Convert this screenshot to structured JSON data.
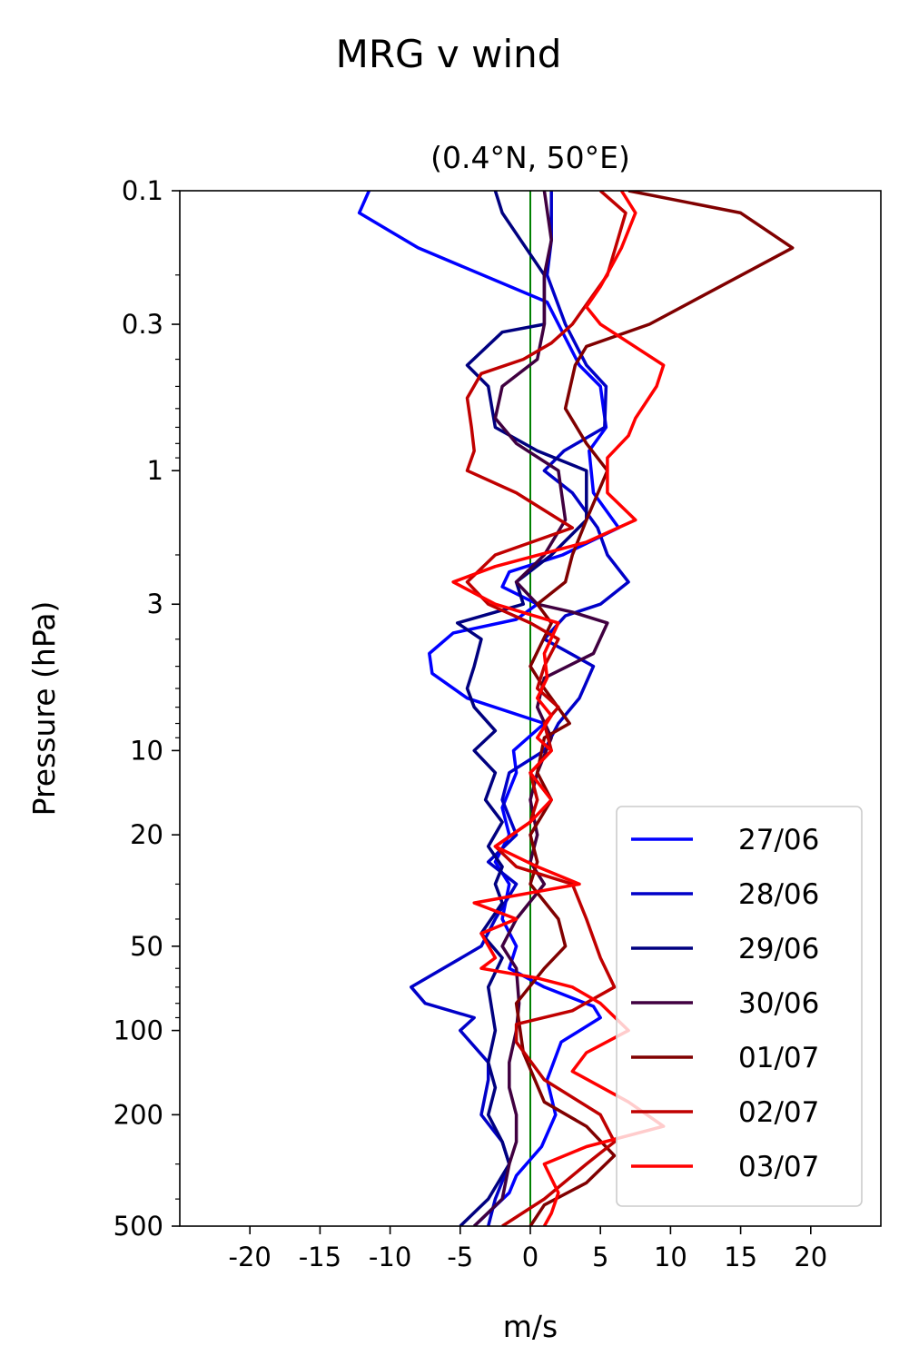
{
  "suptitle": "MRG v wind",
  "chart_data": {
    "type": "line",
    "title": "(0.4°N, 50°E)",
    "xlabel": "m/s",
    "ylabel": "Pressure (hPa)",
    "xlim": [
      -25,
      25
    ],
    "ylim": [
      500,
      0.1
    ],
    "yscale": "log",
    "y_inverted": true,
    "xticks": [
      -20,
      -15,
      -10,
      -5,
      0,
      5,
      10,
      15,
      20
    ],
    "xtick_labels": [
      "-20",
      "-15",
      "-10",
      "-5",
      "0",
      "5",
      "10",
      "15",
      "20"
    ],
    "yticks": [
      0.1,
      0.3,
      1,
      3,
      10,
      20,
      50,
      100,
      200,
      500
    ],
    "ytick_labels": [
      "0.1",
      "0.3",
      "1",
      "3",
      "10",
      "20",
      "50",
      "100",
      "200",
      "500"
    ],
    "grid": false,
    "legend_position": "lower-right",
    "reference_line": {
      "x": 0,
      "color": "#008000"
    },
    "series": [
      {
        "name": "27/06",
        "color": "#0000ff",
        "points": [
          [
            -11.5,
            0.1
          ],
          [
            -12.2,
            0.12
          ],
          [
            -8,
            0.16
          ],
          [
            1.2,
            0.25
          ],
          [
            3.5,
            0.42
          ],
          [
            5.0,
            0.5
          ],
          [
            5.4,
            0.7
          ],
          [
            4.2,
            0.85
          ],
          [
            4.5,
            1.2
          ],
          [
            6.3,
            1.6
          ],
          [
            2.3,
            2.0
          ],
          [
            -1.5,
            2.3
          ],
          [
            -2.0,
            2.6
          ],
          [
            0.5,
            3.0
          ],
          [
            -1.0,
            3.4
          ],
          [
            -5.5,
            3.8
          ],
          [
            -7.2,
            4.5
          ],
          [
            -7.0,
            5.3
          ],
          [
            -4.5,
            6.5
          ],
          [
            1.0,
            8.0
          ],
          [
            -1.2,
            10
          ],
          [
            -1.0,
            12
          ],
          [
            -2.0,
            16
          ],
          [
            -1.5,
            20
          ],
          [
            -2.5,
            25
          ],
          [
            -1.5,
            30
          ],
          [
            -2.0,
            40
          ],
          [
            -1.0,
            50
          ],
          [
            -1.5,
            60
          ],
          [
            1.0,
            70
          ],
          [
            4.5,
            82
          ],
          [
            5.0,
            90
          ],
          [
            2.2,
            110
          ],
          [
            1.2,
            150
          ],
          [
            1.8,
            200
          ],
          [
            0.8,
            260
          ],
          [
            -1.0,
            330
          ],
          [
            -1.5,
            380
          ],
          [
            -4.0,
            500
          ]
        ]
      },
      {
        "name": "28/06",
        "color": "#0000c8",
        "points": [
          [
            1.5,
            0.1
          ],
          [
            1.5,
            0.15
          ],
          [
            1.2,
            0.2
          ],
          [
            2.5,
            0.3
          ],
          [
            4.0,
            0.42
          ],
          [
            5.4,
            0.5
          ],
          [
            5.3,
            0.7
          ],
          [
            2.4,
            0.85
          ],
          [
            1.0,
            1.0
          ],
          [
            3.0,
            1.2
          ],
          [
            4.8,
            1.6
          ],
          [
            5.5,
            2.0
          ],
          [
            7.0,
            2.5
          ],
          [
            5.0,
            3.0
          ],
          [
            2.5,
            3.3
          ],
          [
            1.0,
            4.0
          ],
          [
            4.5,
            5.0
          ],
          [
            3.5,
            6.5
          ],
          [
            2.0,
            8.0
          ],
          [
            1.0,
            10
          ],
          [
            -1.5,
            12
          ],
          [
            -2.0,
            15
          ],
          [
            -1.0,
            20
          ],
          [
            -3.0,
            25
          ],
          [
            -1.0,
            30
          ],
          [
            -2.5,
            40
          ],
          [
            -3.5,
            50
          ],
          [
            -8.5,
            70
          ],
          [
            -7.5,
            80
          ],
          [
            -4.0,
            90
          ],
          [
            -5.0,
            100
          ],
          [
            -3.0,
            130
          ],
          [
            -3.0,
            150
          ],
          [
            -3.5,
            200
          ],
          [
            -2.0,
            250
          ],
          [
            -1.5,
            300
          ],
          [
            -2.5,
            400
          ],
          [
            -3.0,
            500
          ]
        ]
      },
      {
        "name": "29/06",
        "color": "#000080",
        "points": [
          [
            -2.5,
            0.1
          ],
          [
            -2.0,
            0.12
          ],
          [
            1.0,
            0.2
          ],
          [
            1.0,
            0.3
          ],
          [
            -2.0,
            0.32
          ],
          [
            -4.5,
            0.42
          ],
          [
            -3.0,
            0.5
          ],
          [
            -2.5,
            0.7
          ],
          [
            0.5,
            0.85
          ],
          [
            4.0,
            1.0
          ],
          [
            4.0,
            1.5
          ],
          [
            1.5,
            2.0
          ],
          [
            -1.0,
            2.5
          ],
          [
            -0.5,
            3.0
          ],
          [
            -5.2,
            3.5
          ],
          [
            -3.5,
            4.0
          ],
          [
            -4.0,
            5.0
          ],
          [
            -4.5,
            6.0
          ],
          [
            -4.0,
            7.0
          ],
          [
            -2.5,
            8.5
          ],
          [
            -4.0,
            10
          ],
          [
            -2.5,
            12
          ],
          [
            -3.2,
            15
          ],
          [
            -2.0,
            18
          ],
          [
            -3.0,
            22
          ],
          [
            -2.0,
            26
          ],
          [
            -2.5,
            30
          ],
          [
            -2.0,
            35
          ],
          [
            -3.5,
            45
          ],
          [
            -2.0,
            55
          ],
          [
            -3.0,
            70
          ],
          [
            -2.5,
            100
          ],
          [
            -3.0,
            130
          ],
          [
            -2.5,
            160
          ],
          [
            -3.0,
            200
          ],
          [
            -2.0,
            250
          ],
          [
            -1.5,
            300
          ],
          [
            -3.0,
            400
          ],
          [
            -5.0,
            500
          ]
        ]
      },
      {
        "name": "30/06",
        "color": "#400040",
        "points": [
          [
            1.0,
            0.1
          ],
          [
            1.5,
            0.15
          ],
          [
            1.0,
            0.2
          ],
          [
            1.0,
            0.3
          ],
          [
            0.5,
            0.4
          ],
          [
            -2.0,
            0.5
          ],
          [
            -2.5,
            0.65
          ],
          [
            -1.0,
            0.8
          ],
          [
            2.0,
            1.0
          ],
          [
            2.5,
            1.5
          ],
          [
            1.0,
            2.0
          ],
          [
            -1.0,
            2.5
          ],
          [
            0.5,
            3.0
          ],
          [
            3.0,
            3.2
          ],
          [
            5.5,
            3.5
          ],
          [
            4.5,
            4.5
          ],
          [
            1.0,
            5.5
          ],
          [
            0.5,
            7.0
          ],
          [
            1.5,
            9.0
          ],
          [
            0.5,
            12
          ],
          [
            0.0,
            15
          ],
          [
            0.5,
            20
          ],
          [
            0.0,
            25
          ],
          [
            1.0,
            30
          ],
          [
            -1.0,
            40
          ],
          [
            -2.0,
            50
          ],
          [
            -1.0,
            60
          ],
          [
            -0.8,
            80
          ],
          [
            -1.0,
            100
          ],
          [
            -1.5,
            130
          ],
          [
            -1.5,
            160
          ],
          [
            -1.0,
            200
          ],
          [
            -1.0,
            250
          ],
          [
            -1.5,
            300
          ],
          [
            -2.0,
            400
          ],
          [
            -4.0,
            500
          ]
        ]
      },
      {
        "name": "01/07",
        "color": "#800000",
        "points": [
          [
            7.0,
            0.1
          ],
          [
            15.0,
            0.12
          ],
          [
            18.7,
            0.16
          ],
          [
            8.5,
            0.3
          ],
          [
            4.0,
            0.36
          ],
          [
            3.2,
            0.42
          ],
          [
            2.5,
            0.6
          ],
          [
            4.0,
            0.8
          ],
          [
            5.5,
            1.0
          ],
          [
            4.0,
            1.5
          ],
          [
            3.0,
            2.0
          ],
          [
            2.5,
            2.5
          ],
          [
            0.5,
            3.0
          ],
          [
            1.5,
            3.5
          ],
          [
            0.0,
            5.0
          ],
          [
            1.0,
            6.0
          ],
          [
            2.8,
            8.0
          ],
          [
            1.0,
            9.0
          ],
          [
            0.5,
            12
          ],
          [
            1.5,
            15
          ],
          [
            0.0,
            20
          ],
          [
            0.5,
            25
          ],
          [
            0.0,
            30
          ],
          [
            2.0,
            40
          ],
          [
            2.5,
            50
          ],
          [
            1.0,
            60
          ],
          [
            -1.0,
            80
          ],
          [
            -0.5,
            120
          ],
          [
            1.0,
            180
          ],
          [
            4.0,
            220
          ],
          [
            6.0,
            280
          ],
          [
            4.0,
            350
          ],
          [
            1.0,
            420
          ],
          [
            0.0,
            500
          ]
        ]
      },
      {
        "name": "02/07",
        "color": "#c00000",
        "points": [
          [
            5.0,
            0.1
          ],
          [
            6.8,
            0.12
          ],
          [
            5.5,
            0.2
          ],
          [
            3.0,
            0.3
          ],
          [
            1.5,
            0.35
          ],
          [
            -0.5,
            0.4
          ],
          [
            -3.5,
            0.45
          ],
          [
            -4.5,
            0.55
          ],
          [
            -4.2,
            0.7
          ],
          [
            -4.0,
            0.85
          ],
          [
            -4.5,
            1.0
          ],
          [
            -1.0,
            1.2
          ],
          [
            3.0,
            1.6
          ],
          [
            -2.5,
            2.0
          ],
          [
            -4.5,
            2.5
          ],
          [
            -3.0,
            3.0
          ],
          [
            0.0,
            3.5
          ],
          [
            2.0,
            4.0
          ],
          [
            1.0,
            5.0
          ],
          [
            0.5,
            6.0
          ],
          [
            2.0,
            7.0
          ],
          [
            1.0,
            8.0
          ],
          [
            1.5,
            10
          ],
          [
            0.0,
            12
          ],
          [
            0.5,
            15
          ],
          [
            0.0,
            18
          ],
          [
            -2.5,
            22
          ],
          [
            -1.0,
            26
          ],
          [
            3.0,
            30
          ],
          [
            4.0,
            40
          ],
          [
            5.0,
            55
          ],
          [
            6.0,
            70
          ],
          [
            3.0,
            85
          ],
          [
            -1.0,
            95
          ],
          [
            -1.0,
            110
          ],
          [
            1.0,
            150
          ],
          [
            5.0,
            200
          ],
          [
            6.0,
            250
          ],
          [
            4.0,
            300
          ],
          [
            1.0,
            400
          ],
          [
            -2.0,
            500
          ]
        ]
      },
      {
        "name": "03/07",
        "color": "#ff0000",
        "points": [
          [
            6.5,
            0.1
          ],
          [
            7.5,
            0.12
          ],
          [
            6.5,
            0.16
          ],
          [
            5.0,
            0.22
          ],
          [
            4.0,
            0.26
          ],
          [
            5.0,
            0.3
          ],
          [
            9.5,
            0.42
          ],
          [
            9.0,
            0.5
          ],
          [
            7.5,
            0.65
          ],
          [
            7.0,
            0.75
          ],
          [
            5.5,
            0.9
          ],
          [
            5.5,
            1.2
          ],
          [
            7.5,
            1.5
          ],
          [
            4.0,
            1.8
          ],
          [
            -2.5,
            2.2
          ],
          [
            -5.5,
            2.5
          ],
          [
            -2.5,
            3.0
          ],
          [
            2.0,
            3.5
          ],
          [
            1.0,
            4.5
          ],
          [
            1.2,
            5.5
          ],
          [
            0.5,
            6.5
          ],
          [
            1.5,
            7.5
          ],
          [
            0.5,
            9.0
          ],
          [
            1.5,
            10
          ],
          [
            0.0,
            12
          ],
          [
            1.5,
            15
          ],
          [
            0.0,
            18
          ],
          [
            -2.5,
            22
          ],
          [
            0.5,
            26
          ],
          [
            3.5,
            30
          ],
          [
            -4.0,
            35
          ],
          [
            -1.0,
            40
          ],
          [
            -3.5,
            45
          ],
          [
            -2.5,
            55
          ],
          [
            -3.5,
            60
          ],
          [
            0.5,
            65
          ],
          [
            3.0,
            70
          ],
          [
            5.0,
            80
          ],
          [
            7.0,
            100
          ],
          [
            4.0,
            120
          ],
          [
            3.0,
            140
          ],
          [
            7.0,
            180
          ],
          [
            9.5,
            220
          ],
          [
            4.0,
            260
          ],
          [
            1.0,
            300
          ],
          [
            2.0,
            380
          ],
          [
            1.5,
            450
          ],
          [
            1.0,
            500
          ]
        ]
      }
    ]
  }
}
